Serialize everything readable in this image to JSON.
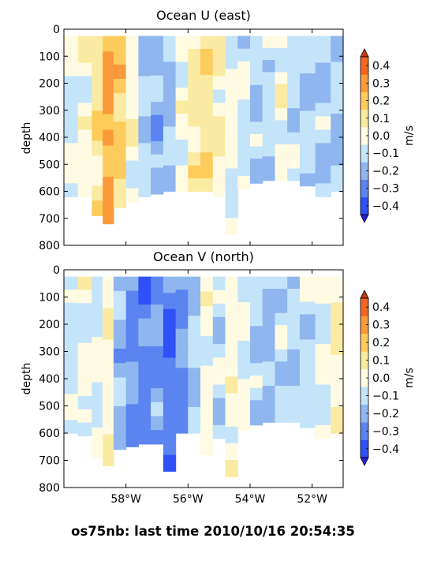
{
  "footer": {
    "caption": "os75nb: last time 2010/10/16 20:54:35"
  },
  "colors": {
    "levels": [
      "#3050f8",
      "#5b84f0",
      "#8fb6ee",
      "#c4e4fa",
      "#fffbe3",
      "#fbeaa1",
      "#fdcc5c",
      "#fa9a3a",
      "#f36520"
    ],
    "over": "#c13e12",
    "under": "#2a1fd0"
  },
  "chart_data": [
    {
      "type": "heatmap",
      "title": "Ocean U (east)",
      "ylabel": "depth",
      "xlabel": "",
      "xlim": [
        -60.0,
        -51.0
      ],
      "ylim": [
        800,
        0
      ],
      "xticks": [
        -58,
        -56,
        -54,
        -52
      ],
      "xtick_labels": [],
      "yticks": [
        0,
        100,
        200,
        300,
        400,
        500,
        600,
        700,
        800
      ],
      "ytick_labels": [
        "0",
        "100",
        "200",
        "300",
        "400",
        "500",
        "600",
        "700",
        "800"
      ],
      "colorbar": {
        "label": "m/s",
        "levels": [
          -0.4,
          -0.3,
          -0.2,
          -0.1,
          0.0,
          0.1,
          0.2,
          0.3,
          0.4
        ],
        "tick_labels": [
          "−0.4",
          "−0.3",
          "−0.2",
          "−0.1",
          "0.0",
          "0.1",
          "0.2",
          "0.3",
          "0.4"
        ],
        "extend": "both"
      },
      "profiles": [
        {
          "x": -59.8,
          "max_depth": 620,
          "u": 0.0
        },
        {
          "x": -59.3,
          "max_depth": 620,
          "u": 0.05
        },
        {
          "x": -58.9,
          "max_depth": 690,
          "u": 0.15
        },
        {
          "x": -58.6,
          "max_depth": 720,
          "u": 0.32
        },
        {
          "x": -58.2,
          "max_depth": 660,
          "u": 0.22
        },
        {
          "x": -57.8,
          "max_depth": 640,
          "u": 0.06
        },
        {
          "x": -57.4,
          "max_depth": 620,
          "u": -0.08
        },
        {
          "x": -57.0,
          "max_depth": 610,
          "u": -0.15
        },
        {
          "x": -56.6,
          "max_depth": 600,
          "u": -0.1
        },
        {
          "x": -56.2,
          "max_depth": 600,
          "u": 0.02
        },
        {
          "x": -55.8,
          "max_depth": 600,
          "u": 0.12
        },
        {
          "x": -55.4,
          "max_depth": 600,
          "u": 0.18
        },
        {
          "x": -55.0,
          "max_depth": 620,
          "u": 0.08
        },
        {
          "x": -54.6,
          "max_depth": 760,
          "u": 0.04
        },
        {
          "x": -54.2,
          "max_depth": 590,
          "u": -0.02
        },
        {
          "x": -53.8,
          "max_depth": 570,
          "u": -0.08
        },
        {
          "x": -53.4,
          "max_depth": 560,
          "u": -0.05
        },
        {
          "x": -53.0,
          "max_depth": 560,
          "u": 0.03
        },
        {
          "x": -52.6,
          "max_depth": 560,
          "u": -0.06
        },
        {
          "x": -52.2,
          "max_depth": 580,
          "u": -0.1
        },
        {
          "x": -51.6,
          "max_depth": 620,
          "u": -0.08
        },
        {
          "x": -51.2,
          "max_depth": 600,
          "u": -0.12
        }
      ]
    },
    {
      "type": "heatmap",
      "title": "Ocean V (north)",
      "ylabel": "depth",
      "xlabel": "",
      "xlim": [
        -60.0,
        -51.0
      ],
      "ylim": [
        800,
        0
      ],
      "xticks": [
        -58,
        -56,
        -54,
        -52
      ],
      "xtick_labels": [
        "58°W",
        "56°W",
        "54°W",
        "52°W"
      ],
      "yticks": [
        0,
        100,
        200,
        300,
        400,
        500,
        600,
        700,
        800
      ],
      "ytick_labels": [
        "0",
        "100",
        "200",
        "300",
        "400",
        "500",
        "600",
        "700",
        "800"
      ],
      "colorbar": {
        "label": "m/s",
        "levels": [
          -0.4,
          -0.3,
          -0.2,
          -0.1,
          0.0,
          0.1,
          0.2,
          0.3,
          0.4
        ],
        "tick_labels": [
          "−0.4",
          "−0.3",
          "−0.2",
          "−0.1",
          "0.0",
          "0.1",
          "0.2",
          "0.3",
          "0.4"
        ],
        "extend": "both"
      },
      "profiles": [
        {
          "x": -59.8,
          "max_depth": 600,
          "v": -0.05
        },
        {
          "x": -59.3,
          "max_depth": 610,
          "v": 0.02
        },
        {
          "x": -58.9,
          "max_depth": 690,
          "v": 0.0
        },
        {
          "x": -58.6,
          "max_depth": 720,
          "v": 0.08
        },
        {
          "x": -58.2,
          "max_depth": 660,
          "v": -0.12
        },
        {
          "x": -57.8,
          "max_depth": 650,
          "v": -0.2
        },
        {
          "x": -57.4,
          "max_depth": 640,
          "v": -0.25
        },
        {
          "x": -57.0,
          "max_depth": 640,
          "v": -0.18
        },
        {
          "x": -56.6,
          "max_depth": 740,
          "v": -0.28
        },
        {
          "x": -56.2,
          "max_depth": 600,
          "v": -0.2
        },
        {
          "x": -55.8,
          "max_depth": 600,
          "v": -0.1
        },
        {
          "x": -55.4,
          "max_depth": 680,
          "v": 0.02
        },
        {
          "x": -55.0,
          "max_depth": 620,
          "v": -0.05
        },
        {
          "x": -54.6,
          "max_depth": 760,
          "v": 0.05
        },
        {
          "x": -54.2,
          "max_depth": 590,
          "v": 0.0
        },
        {
          "x": -53.8,
          "max_depth": 570,
          "v": -0.08
        },
        {
          "x": -53.4,
          "max_depth": 560,
          "v": -0.12
        },
        {
          "x": -53.0,
          "max_depth": 560,
          "v": -0.05
        },
        {
          "x": -52.6,
          "max_depth": 560,
          "v": -0.1
        },
        {
          "x": -52.2,
          "max_depth": 580,
          "v": -0.06
        },
        {
          "x": -51.6,
          "max_depth": 620,
          "v": 0.0
        },
        {
          "x": -51.2,
          "max_depth": 600,
          "v": 0.08
        }
      ]
    }
  ]
}
